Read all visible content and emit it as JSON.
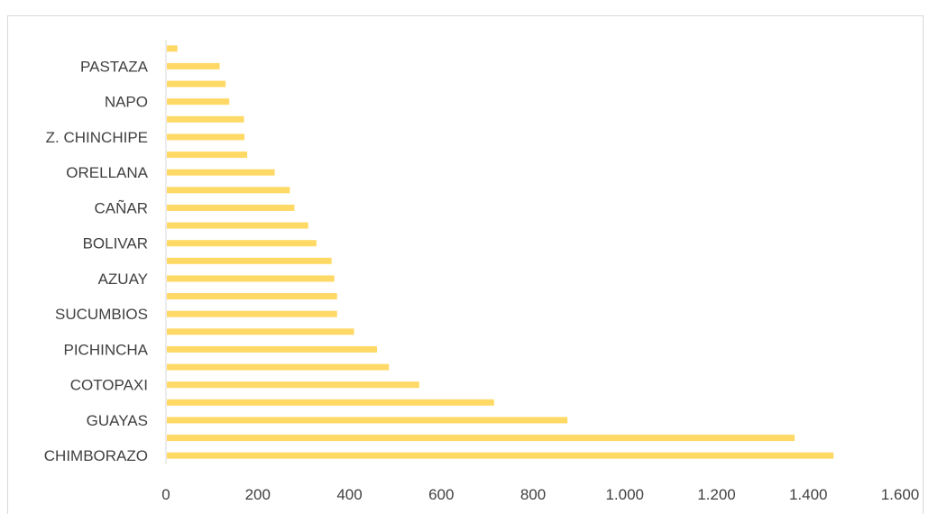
{
  "chart_data": {
    "type": "bar",
    "orientation": "horizontal",
    "title": "",
    "xlabel": "",
    "ylabel": "",
    "categories": [
      "CHIMBORAZO",
      "",
      "GUAYAS",
      "",
      "COTOPAXI",
      "",
      "PICHINCHA",
      "",
      "SUCUMBIOS",
      "",
      "AZUAY",
      "",
      "BOLIVAR",
      "",
      "CAÑAR",
      "",
      "ORELLANA",
      "",
      "Z. CHINCHIPE",
      "",
      "NAPO",
      "",
      "PASTAZA",
      ""
    ],
    "values": [
      1455,
      1370,
      875,
      715,
      552,
      486,
      460,
      410,
      373,
      373,
      367,
      361,
      328,
      310,
      280,
      270,
      237,
      177,
      171,
      170,
      138,
      130,
      117,
      25
    ],
    "xlim": [
      0,
      1600
    ],
    "xticks": [
      0,
      200,
      400,
      600,
      800,
      1000,
      1200,
      1400,
      1600
    ],
    "xtick_labels": [
      "0",
      "200",
      "400",
      "600",
      "800",
      "1.000",
      "1.200",
      "1.400",
      "1.600"
    ],
    "bar_color": "#FFD966",
    "axis_color": "#d9d9d9",
    "label_color": "#404040",
    "grid": false,
    "legend": "none"
  }
}
